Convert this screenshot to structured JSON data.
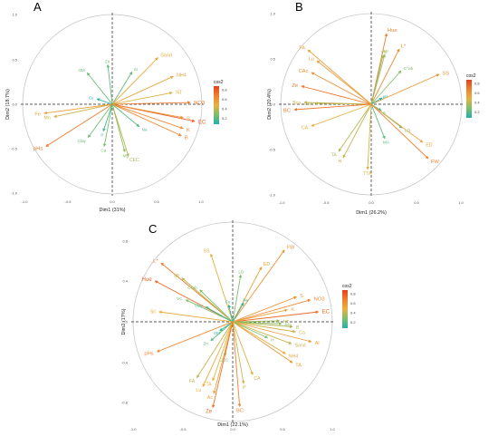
{
  "legend": {
    "title": "cos2",
    "ticks": [
      "0.8",
      "0.6",
      "0.4",
      "0.2"
    ],
    "colors": [
      "#20b2aa",
      "#7cbf6a",
      "#e8b040",
      "#f08030",
      "#e8401c"
    ]
  },
  "chart_data": [
    {
      "panel_label": "A",
      "type": "scatter",
      "xlabel": "Dim1 (31%)",
      "ylabel": "Dim2 (18.7%)",
      "xlim": [
        -1,
        1
      ],
      "ylim": [
        -1,
        1
      ],
      "xticks": [
        "-1.0",
        "-0.5",
        "0.0",
        "0.5",
        "1.0"
      ],
      "yticks": [
        "1.0",
        "0.5",
        "0.0",
        "-0.5",
        "-1.0"
      ],
      "variables": [
        {
          "label": "Sand",
          "x": 0.51,
          "y": 0.52,
          "cos2": 0.53
        },
        {
          "label": "Si",
          "x": 0.22,
          "y": 0.36,
          "cos2": 0.18
        },
        {
          "label": "Zn",
          "x": -0.05,
          "y": 0.44,
          "cos2": 0.19
        },
        {
          "label": "OM",
          "x": -0.28,
          "y": 0.35,
          "cos2": 0.2
        },
        {
          "label": "Cu",
          "x": -0.17,
          "y": 0.06,
          "cos2": 0.04
        },
        {
          "label": "NH4",
          "x": 0.68,
          "y": 0.31,
          "cos2": 0.56
        },
        {
          "label": "NT",
          "x": 0.67,
          "y": 0.13,
          "cos2": 0.47
        },
        {
          "label": "NO3",
          "x": 0.87,
          "y": 0.02,
          "cos2": 0.76
        },
        {
          "label": "EC",
          "x": 0.92,
          "y": -0.19,
          "cos2": 0.88
        },
        {
          "label": "S",
          "x": 0.79,
          "y": -0.15,
          "cos2": 0.65
        },
        {
          "label": "K",
          "x": 0.79,
          "y": -0.27,
          "cos2": 0.7
        },
        {
          "label": "B",
          "x": 0.77,
          "y": -0.35,
          "cos2": 0.72
        },
        {
          "label": "Na",
          "x": 0.3,
          "y": -0.25,
          "cos2": 0.15
        },
        {
          "label": "Mg",
          "x": 0.14,
          "y": -0.53,
          "cos2": 0.3
        },
        {
          "label": "CEC",
          "x": 0.18,
          "y": -0.58,
          "cos2": 0.37
        },
        {
          "label": "Ca",
          "x": -0.09,
          "y": -0.47,
          "cos2": 0.23
        },
        {
          "label": "Clay",
          "x": -0.27,
          "y": -0.37,
          "cos2": 0.21
        },
        {
          "label": "P",
          "x": -0.1,
          "y": -0.3,
          "cos2": 0.1
        },
        {
          "label": "Mn",
          "x": -0.65,
          "y": -0.14,
          "cos2": 0.44
        },
        {
          "label": "Fe",
          "x": -0.76,
          "y": -0.1,
          "cos2": 0.58
        },
        {
          "label": "pHs",
          "x": -0.74,
          "y": -0.47,
          "cos2": 0.77
        }
      ]
    },
    {
      "panel_label": "B",
      "type": "scatter",
      "xlabel": "Dim1 (26.2%)",
      "ylabel": "Dim2 (20.4%)",
      "xlim": [
        -1,
        1
      ],
      "ylim": [
        -1,
        1
      ],
      "xticks": [
        "-1.0",
        "-0.5",
        "0.0",
        "0.5",
        "1.0"
      ],
      "yticks": [
        "1.0",
        "0.5",
        "0.0",
        "-0.5",
        "-1.0"
      ],
      "variables": [
        {
          "label": "Hue",
          "x": 0.17,
          "y": 0.78,
          "cos2": 0.75
        },
        {
          "label": "L*",
          "x": 0.31,
          "y": 0.61,
          "cos2": 0.68
        },
        {
          "label": "MI",
          "x": 0.15,
          "y": 0.55,
          "cos2": 0.34
        },
        {
          "label": "VC",
          "x": 0.13,
          "y": 0.54,
          "cos2": 0.32
        },
        {
          "label": "C*ab",
          "x": 0.33,
          "y": 0.37,
          "cos2": 0.27
        },
        {
          "label": "SS",
          "x": 0.75,
          "y": 0.33,
          "cos2": 0.64
        },
        {
          "label": "pH",
          "x": 0.12,
          "y": 0.07,
          "cos2": 0.04
        },
        {
          "label": "A",
          "x": 0.11,
          "y": -0.07,
          "cos2": 0.03
        },
        {
          "label": "LD",
          "x": 0.34,
          "y": -0.26,
          "cos2": 0.21
        },
        {
          "label": "ED",
          "x": 0.57,
          "y": -0.42,
          "cos2": 0.52
        },
        {
          "label": "MA",
          "x": 0.15,
          "y": -0.38,
          "cos2": 0.17
        },
        {
          "label": "FW",
          "x": 0.63,
          "y": -0.6,
          "cos2": 0.74
        },
        {
          "label": "TTA",
          "x": -0.04,
          "y": -0.72,
          "cos2": 0.47
        },
        {
          "label": "H",
          "x": -0.31,
          "y": -0.59,
          "cos2": 0.41
        },
        {
          "label": "TA",
          "x": -0.36,
          "y": -0.52,
          "cos2": 0.38
        },
        {
          "label": "CA",
          "x": -0.66,
          "y": -0.24,
          "cos2": 0.5
        },
        {
          "label": "Bra",
          "x": -0.62,
          "y": 0.01,
          "cos2": 0.38
        },
        {
          "label": "Bca",
          "x": -0.74,
          "y": 0.02,
          "cos2": 0.42
        },
        {
          "label": "BC",
          "x": -0.85,
          "y": -0.06,
          "cos2": 0.78
        },
        {
          "label": "Ze",
          "x": -0.77,
          "y": 0.2,
          "cos2": 0.79
        },
        {
          "label": "CAc",
          "x": -0.66,
          "y": 0.35,
          "cos2": 0.66
        },
        {
          "label": "Lu",
          "x": -0.6,
          "y": 0.48,
          "cos2": 0.6
        },
        {
          "label": "FA",
          "x": -0.7,
          "y": 0.6,
          "cos2": 0.56
        }
      ]
    },
    {
      "panel_label": "C",
      "type": "scatter",
      "xlabel": "Dim1 (22.1%)",
      "ylabel": "Dim2 (17%)",
      "xlim": [
        -1,
        1
      ],
      "ylim": [
        -1,
        1
      ],
      "xticks": [
        "-1.0",
        "-0.5",
        "0.0",
        "0.5",
        "1.0"
      ],
      "yticks": [
        "0.8",
        "0.4",
        "0.0",
        "-0.4",
        "-0.8"
      ],
      "variables": [
        {
          "label": "FW",
          "x": 0.52,
          "y": 0.72,
          "cos2": 0.63
        },
        {
          "label": "ED",
          "x": 0.29,
          "y": 0.55,
          "cos2": 0.57
        },
        {
          "label": "LD",
          "x": 0.08,
          "y": 0.47,
          "cos2": 0.25
        },
        {
          "label": "SS",
          "x": -0.22,
          "y": 0.68,
          "cos2": 0.5
        },
        {
          "label": "L*",
          "x": -0.72,
          "y": 0.59,
          "cos2": 0.75
        },
        {
          "label": "Hue",
          "x": -0.78,
          "y": 0.41,
          "cos2": 0.85
        },
        {
          "label": "MI",
          "x": -0.51,
          "y": 0.44,
          "cos2": 0.39
        },
        {
          "label": "C*ab",
          "x": -0.33,
          "y": 0.32,
          "cos2": 0.25
        },
        {
          "label": "VC",
          "x": -0.47,
          "y": 0.22,
          "cos2": 0.26
        },
        {
          "label": "Clay",
          "x": -0.27,
          "y": 0.15,
          "cos2": 0.11
        },
        {
          "label": "Cu",
          "x": -0.04,
          "y": 0.17,
          "cos2": 0.03
        },
        {
          "label": "Na",
          "x": 0.11,
          "y": 0.19,
          "cos2": 0.05
        },
        {
          "label": "Sil",
          "x": -0.74,
          "y": 0.1,
          "cos2": 0.52
        },
        {
          "label": "S",
          "x": 0.64,
          "y": 0.25,
          "cos2": 0.68
        },
        {
          "label": "NO3",
          "x": 0.78,
          "y": 0.22,
          "cos2": 0.71
        },
        {
          "label": "EC",
          "x": 0.86,
          "y": 0.1,
          "cos2": 0.82
        },
        {
          "label": "K",
          "x": 0.55,
          "y": 0.12,
          "cos2": 0.55
        },
        {
          "label": "NT",
          "x": 0.47,
          "y": 0.01,
          "cos2": 0.34
        },
        {
          "label": "B",
          "x": 0.6,
          "y": -0.05,
          "cos2": 0.37
        },
        {
          "label": "MA",
          "x": 0.49,
          "y": -0.02,
          "cos2": 0.29
        },
        {
          "label": "Ca",
          "x": 0.63,
          "y": -0.1,
          "cos2": 0.45
        },
        {
          "label": "Sand",
          "x": 0.59,
          "y": -0.22,
          "cos2": 0.42
        },
        {
          "label": "Al",
          "x": 0.79,
          "y": -0.2,
          "cos2": 0.6
        },
        {
          "label": "TA",
          "x": 0.6,
          "y": -0.41,
          "cos2": 0.61
        },
        {
          "label": "NH4",
          "x": 0.53,
          "y": -0.32,
          "cos2": 0.52
        },
        {
          "label": "H",
          "x": 0.35,
          "y": -0.16,
          "cos2": 0.27
        },
        {
          "label": "OM",
          "x": -0.13,
          "y": -0.09,
          "cos2": 0.04
        },
        {
          "label": "Zn",
          "x": -0.22,
          "y": -0.19,
          "cos2": 0.16
        },
        {
          "label": "pHs",
          "x": -0.76,
          "y": -0.3,
          "cos2": 0.71
        },
        {
          "label": "CEC",
          "x": -0.08,
          "y": -0.34,
          "cos2": 0.23
        },
        {
          "label": "CA",
          "x": 0.2,
          "y": -0.53,
          "cos2": 0.47
        },
        {
          "label": "P",
          "x": 0.11,
          "y": -0.62,
          "cos2": 0.44
        },
        {
          "label": "FA",
          "x": -0.36,
          "y": -0.56,
          "cos2": 0.42
        },
        {
          "label": "TTA",
          "x": -0.2,
          "y": -0.59,
          "cos2": 0.49
        },
        {
          "label": "Lu",
          "x": -0.3,
          "y": -0.65,
          "cos2": 0.52
        },
        {
          "label": "Ac",
          "x": -0.19,
          "y": -0.72,
          "cos2": 0.55
        },
        {
          "label": "BC",
          "x": 0.07,
          "y": -0.85,
          "cos2": 0.74
        },
        {
          "label": "Ze",
          "x": -0.2,
          "y": -0.86,
          "cos2": 0.8
        }
      ]
    }
  ]
}
